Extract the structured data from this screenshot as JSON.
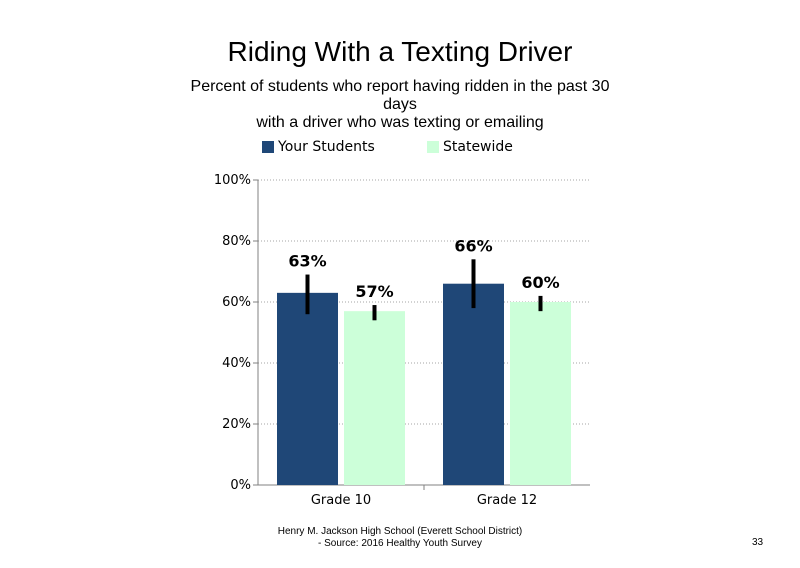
{
  "slide": {
    "title": "Riding With a Texting Driver",
    "subtitle_lines": [
      "Percent of students who report having ridden in the past 30",
      "days",
      "with a driver who was texting or emailing"
    ],
    "footer_lines": [
      "Henry M. Jackson High School (Everett School District)",
      "- Source: 2016 Healthy Youth Survey"
    ],
    "page_number": "33"
  },
  "chart_data": {
    "type": "bar",
    "categories": [
      "Grade 10",
      "Grade 12"
    ],
    "series": [
      {
        "name": "Your Students",
        "color": "#1F4777",
        "values": [
          63,
          66
        ],
        "labels": [
          "63%",
          "66%"
        ],
        "error_low": [
          56,
          58
        ],
        "error_high": [
          69,
          74
        ]
      },
      {
        "name": "Statewide",
        "color": "#CCFFD9",
        "values": [
          57,
          60
        ],
        "labels": [
          "57%",
          "60%"
        ],
        "error_low": [
          54,
          57
        ],
        "error_high": [
          59,
          62
        ]
      }
    ],
    "ylim": [
      0,
      100
    ],
    "yticks": [
      0,
      20,
      40,
      60,
      80,
      100
    ],
    "ytick_labels": [
      "0%",
      "20%",
      "40%",
      "60%",
      "80%",
      "100%"
    ],
    "grid": true,
    "legend_position": "top"
  }
}
